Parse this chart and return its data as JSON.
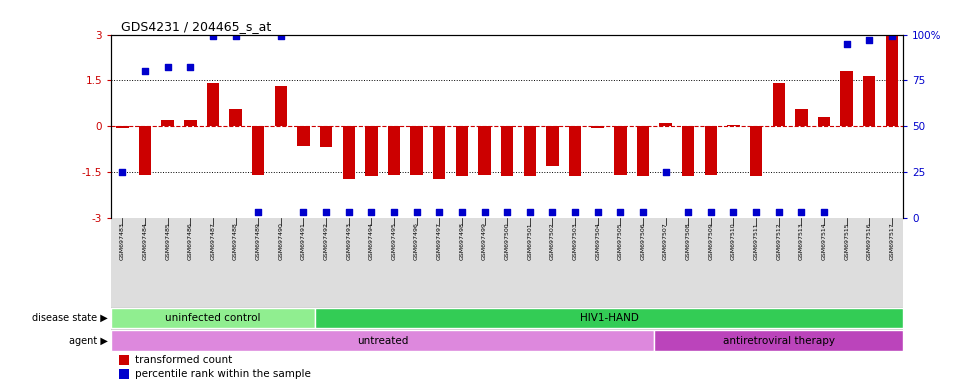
{
  "title": "GDS4231 / 204465_s_at",
  "samples": [
    "GSM697483",
    "GSM697484",
    "GSM697485",
    "GSM697486",
    "GSM697487",
    "GSM697488",
    "GSM697489",
    "GSM697490",
    "GSM697491",
    "GSM697492",
    "GSM697493",
    "GSM697494",
    "GSM697495",
    "GSM697496",
    "GSM697497",
    "GSM697498",
    "GSM697499",
    "GSM697500",
    "GSM697501",
    "GSM697502",
    "GSM697503",
    "GSM697504",
    "GSM697505",
    "GSM697506",
    "GSM697507",
    "GSM697508",
    "GSM697509",
    "GSM697510",
    "GSM697511",
    "GSM697512",
    "GSM697513",
    "GSM697514",
    "GSM697515",
    "GSM697516",
    "GSM697517"
  ],
  "transformed_count": [
    -0.05,
    -1.6,
    0.2,
    0.2,
    1.4,
    0.55,
    -1.6,
    1.3,
    -0.65,
    -0.7,
    -1.75,
    -1.65,
    -1.6,
    -1.6,
    -1.75,
    -1.65,
    -1.6,
    -1.65,
    -1.65,
    -1.3,
    -1.65,
    -0.05,
    -1.6,
    -1.65,
    0.1,
    -1.65,
    -1.6,
    0.05,
    -1.65,
    1.4,
    0.55,
    0.3,
    1.8,
    1.65,
    3.0
  ],
  "percentile_rank": [
    25,
    80,
    82,
    82,
    99,
    99,
    3,
    99,
    3,
    3,
    3,
    3,
    3,
    3,
    3,
    3,
    3,
    3,
    3,
    3,
    3,
    3,
    3,
    3,
    25,
    3,
    3,
    3,
    3,
    3,
    3,
    3,
    95,
    97,
    99
  ],
  "disease_state_groups": [
    {
      "label": "uninfected control",
      "start": 0,
      "end": 9,
      "color": "#90ee90"
    },
    {
      "label": "HIV1-HAND",
      "start": 9,
      "end": 35,
      "color": "#33cc55"
    }
  ],
  "agent_groups": [
    {
      "label": "untreated",
      "start": 0,
      "end": 24,
      "color": "#dd88dd"
    },
    {
      "label": "antiretroviral therapy",
      "start": 24,
      "end": 35,
      "color": "#bb44bb"
    }
  ],
  "bar_color": "#cc0000",
  "dot_color": "#0000cc",
  "ylim": [
    -3,
    3
  ],
  "yticks_left": [
    -3,
    -1.5,
    0,
    1.5,
    3
  ],
  "yticks_right_pct": [
    0,
    25,
    50,
    75,
    100
  ],
  "hline_zero_color": "#cc0000",
  "hline_dotted_color": "#000000",
  "background_color": "#ffffff"
}
